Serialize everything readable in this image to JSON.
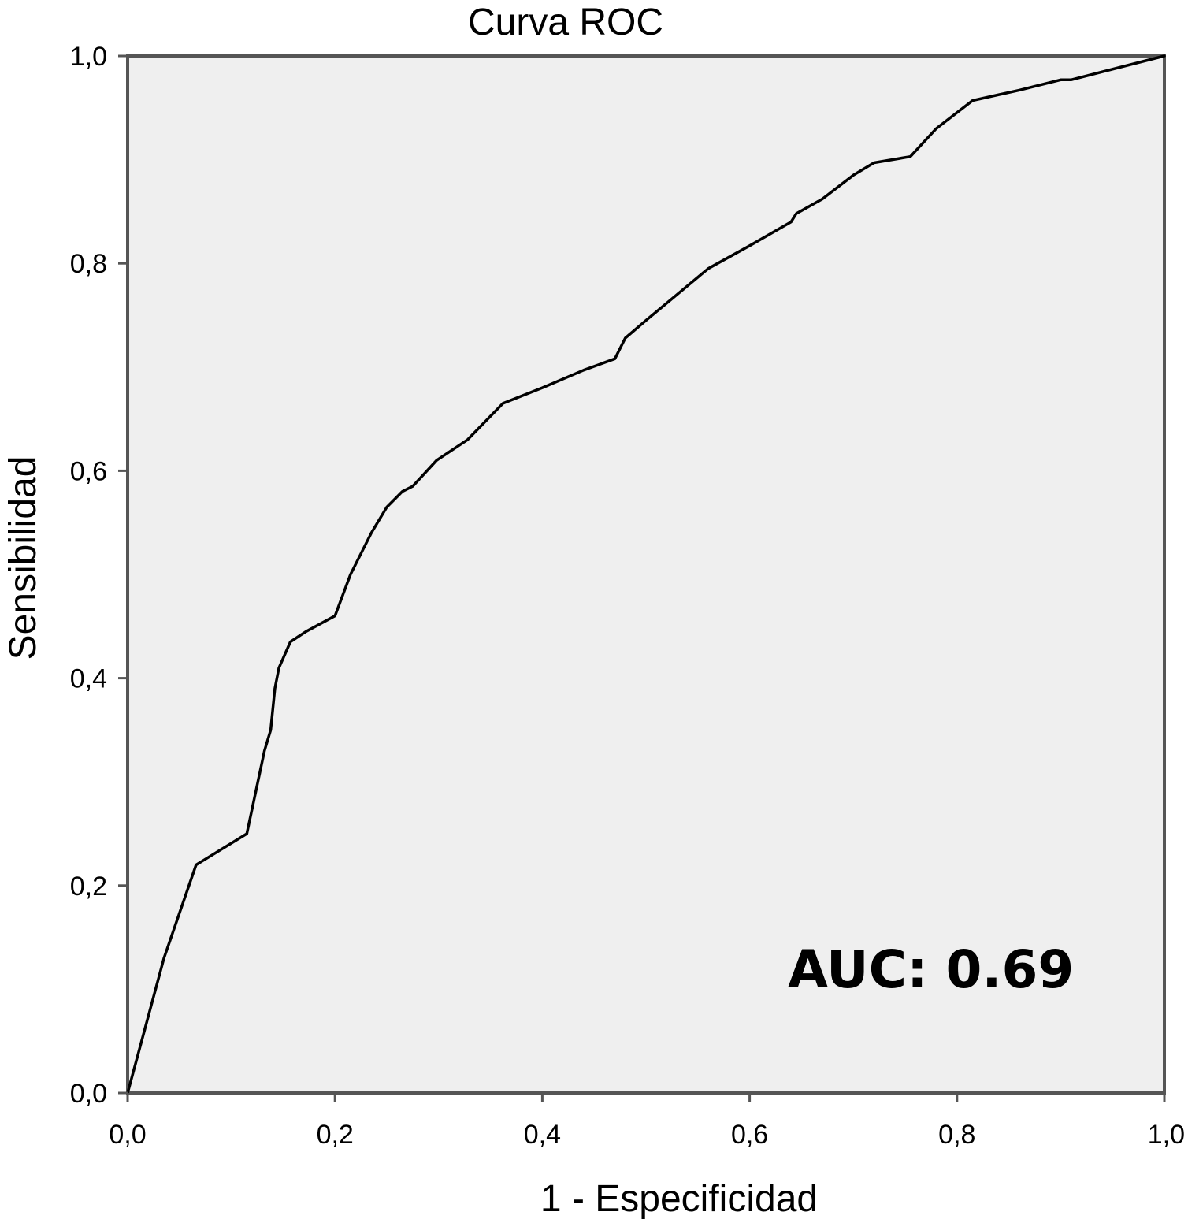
{
  "chart_data": {
    "type": "line",
    "title": "Curva ROC",
    "xlabel": "1 - Especificidad",
    "ylabel": "Sensibilidad",
    "xlim": [
      0,
      1
    ],
    "ylim": [
      0,
      1
    ],
    "x_ticks": [
      "0,0",
      "0,2",
      "0,4",
      "0,6",
      "0,8",
      "1,0"
    ],
    "y_ticks": [
      "0,0",
      "0,2",
      "0,4",
      "0,6",
      "0,8",
      "1,0"
    ],
    "grid": false,
    "background_color": "#efefef",
    "line_color": "#000000",
    "annotation": "AUC: 0.69",
    "series": [
      {
        "x": [
          0.0,
          0.035,
          0.066,
          0.115,
          0.132,
          0.138,
          0.142,
          0.146,
          0.157,
          0.172,
          0.2,
          0.215,
          0.235,
          0.25,
          0.265,
          0.275,
          0.298,
          0.328,
          0.362,
          0.4,
          0.44,
          0.47,
          0.48,
          0.5,
          0.53,
          0.56,
          0.6,
          0.64,
          0.645,
          0.67,
          0.7,
          0.72,
          0.755,
          0.78,
          0.815,
          0.86,
          0.9,
          0.91,
          1.0
        ],
        "y": [
          0.0,
          0.13,
          0.22,
          0.25,
          0.33,
          0.35,
          0.39,
          0.41,
          0.435,
          0.445,
          0.46,
          0.5,
          0.54,
          0.565,
          0.58,
          0.585,
          0.61,
          0.63,
          0.665,
          0.68,
          0.697,
          0.708,
          0.728,
          0.745,
          0.77,
          0.795,
          0.817,
          0.84,
          0.848,
          0.862,
          0.885,
          0.897,
          0.903,
          0.93,
          0.957,
          0.967,
          0.977,
          0.977,
          1.0
        ]
      }
    ]
  }
}
